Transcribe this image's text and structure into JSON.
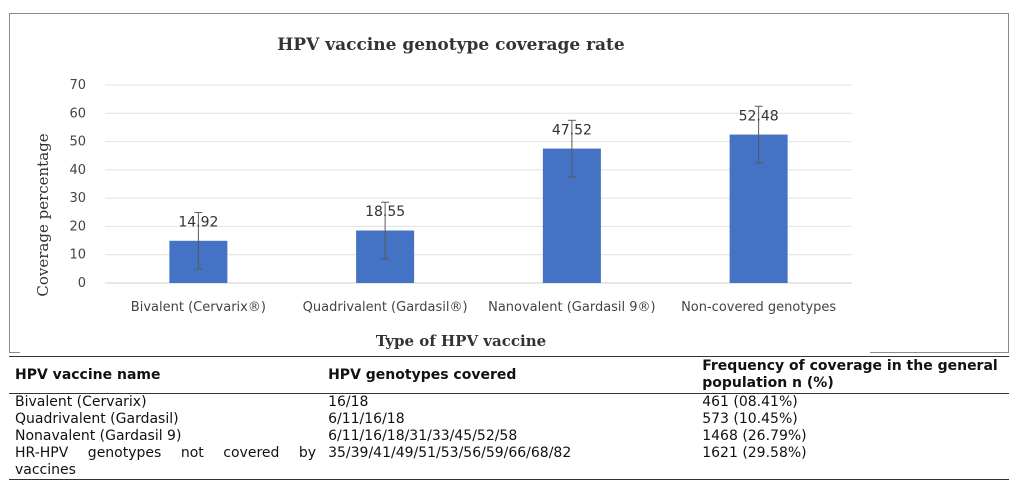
{
  "chart_data": {
    "type": "bar",
    "title": "HPV vaccine genotype coverage rate",
    "xlabel": "Type of HPV vaccine",
    "ylabel": "Coverage percentage",
    "categories": [
      "Bivalent (Cervarix®)",
      "Quadrivalent (Gardasil®)",
      "Nanovalent (Gardasil 9®)",
      "Non-covered genotypes"
    ],
    "values": [
      14.92,
      18.55,
      47.52,
      52.48
    ],
    "data_labels": [
      "14.92",
      "18.55",
      "47.52",
      "52.48"
    ],
    "error": [
      10,
      10,
      10,
      10
    ],
    "ylim": [
      0,
      70
    ],
    "yticks": [
      "0",
      "10",
      "20",
      "30",
      "40",
      "50",
      "60",
      "70"
    ],
    "grid": true,
    "legend": "none",
    "bar_color": "#4472c4"
  },
  "table": {
    "headers": [
      "HPV vaccine name",
      "HPV genotypes covered",
      "Frequency of coverage in the general population n (%)"
    ],
    "rows": [
      [
        "Bivalent (Cervarix)",
        "16/18",
        "461 (08.41%)"
      ],
      [
        "Quadrivalent (Gardasil)",
        "6/11/16/18",
        "573 (10.45%)"
      ],
      [
        "Nonavalent (Gardasil 9)",
        "6/11/16/18/31/33/45/52/58",
        "1468 (26.79%)"
      ],
      [
        "HR-HPV genotypes not covered by vaccines",
        "35/39/41/49/51/53/56/59/66/68/82",
        "1621 (29.58%)"
      ]
    ]
  }
}
